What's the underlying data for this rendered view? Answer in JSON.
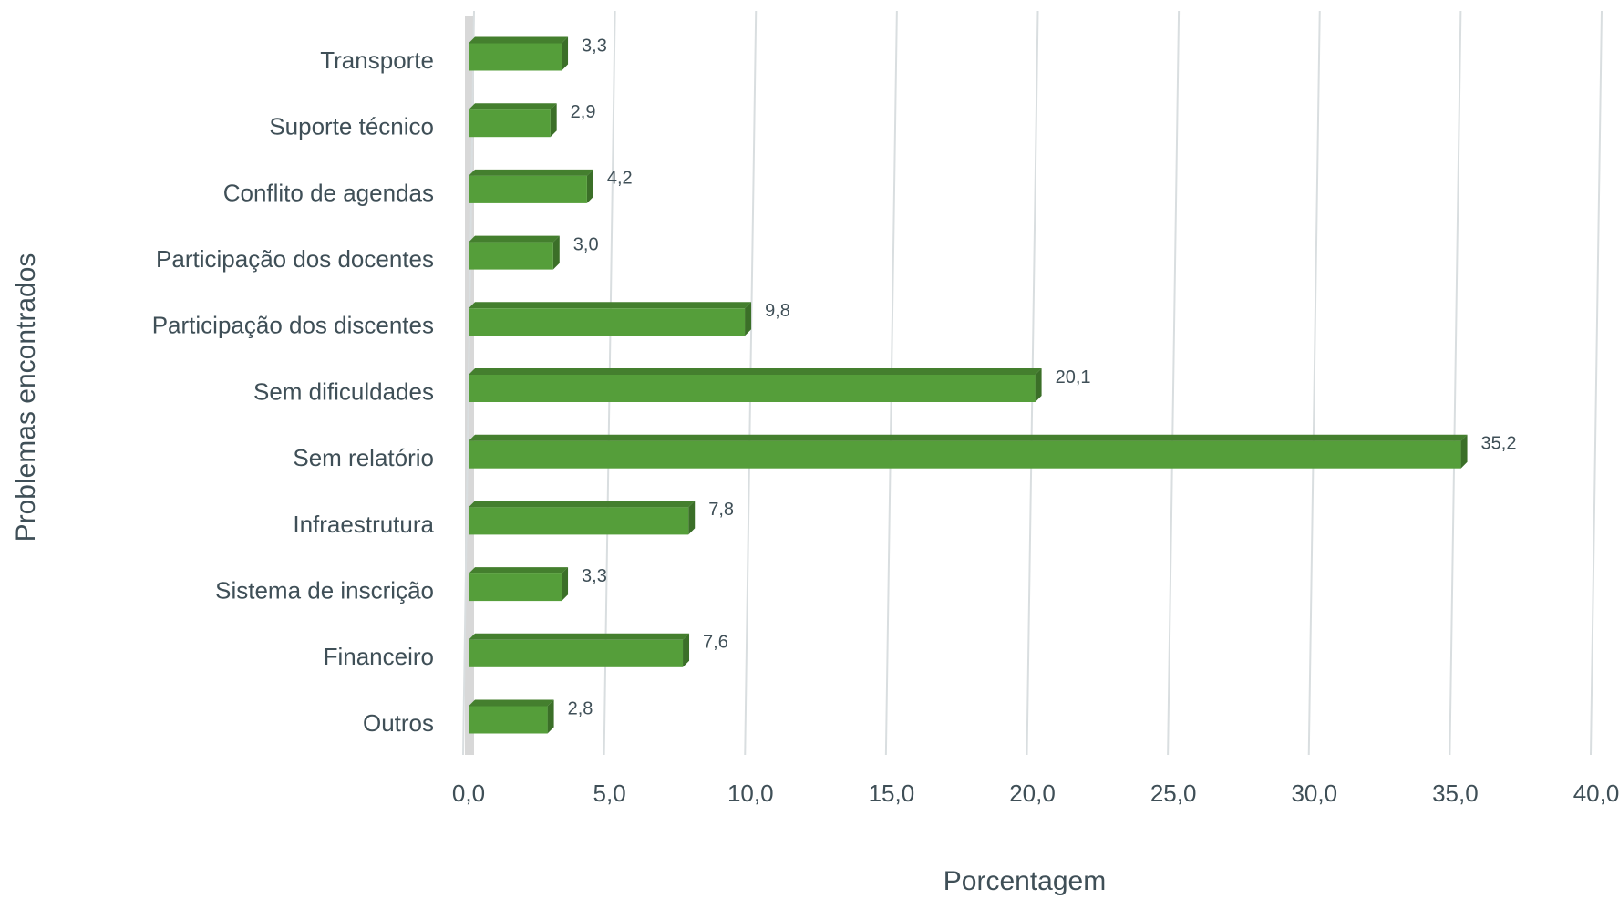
{
  "chart_data": {
    "type": "bar",
    "orientation": "horizontal",
    "ylabel": "Problemas encontrados",
    "xlabel": "Porcentagem",
    "categories": [
      "Transporte",
      "Suporte técnico",
      "Conflito de agendas",
      "Participação dos docentes",
      "Participação dos discentes",
      "Sem dificuldades",
      "Sem relatório",
      "Infraestrutura",
      "Sistema de inscrição",
      "Financeiro",
      "Outros"
    ],
    "values": [
      3.3,
      2.9,
      4.2,
      3.0,
      9.8,
      20.1,
      35.2,
      7.8,
      3.3,
      7.6,
      2.8
    ],
    "value_labels": [
      "3,3",
      "2,9",
      "4,2",
      "3,0",
      "9,8",
      "20,1",
      "35,2",
      "7,8",
      "3,3",
      "7,6",
      "2,8"
    ],
    "color": "#559e3a",
    "xlim": [
      0,
      40
    ],
    "xticks": [
      {
        "value": 0,
        "label": "0,0"
      },
      {
        "value": 5,
        "label": "5,0"
      },
      {
        "value": 10,
        "label": "10,0"
      },
      {
        "value": 15,
        "label": "15,0"
      },
      {
        "value": 20,
        "label": "20,0"
      },
      {
        "value": 25,
        "label": "25,0"
      },
      {
        "value": 30,
        "label": "30,0"
      },
      {
        "value": 35,
        "label": "35,0"
      },
      {
        "value": 40,
        "label": "40,0"
      }
    ],
    "grid": true
  }
}
